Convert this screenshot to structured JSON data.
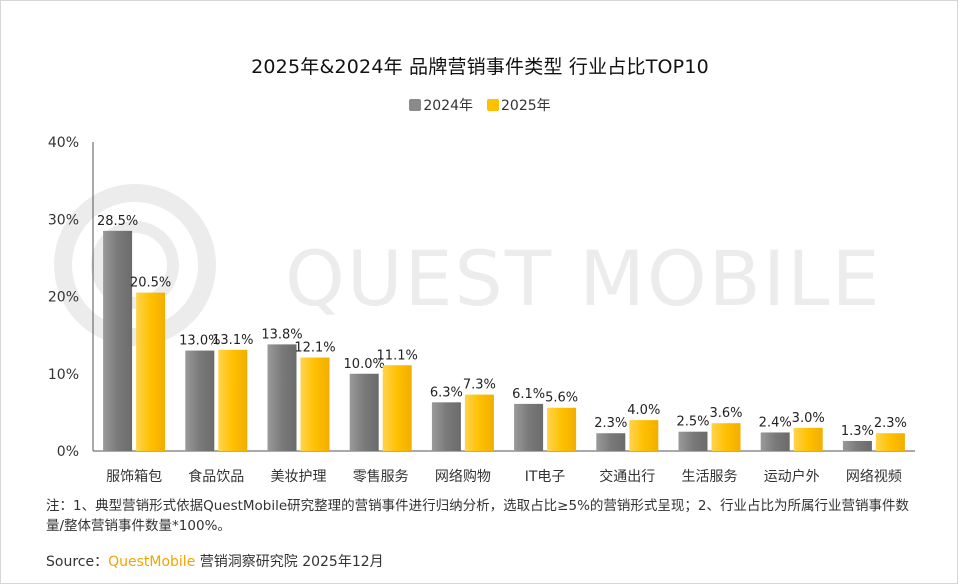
{
  "chart_data": {
    "type": "bar",
    "title": "2025年&2024年 品牌营销事件类型 行业占比TOP10",
    "categories": [
      "服饰箱包",
      "食品饮品",
      "美妆护理",
      "零售服务",
      "网络购物",
      "IT电子",
      "交通出行",
      "生活服务",
      "运动户外",
      "网络视频"
    ],
    "series": [
      {
        "name": "2024年",
        "color": "#8a8a8a",
        "values": [
          28.5,
          13.0,
          13.8,
          10.0,
          6.3,
          6.1,
          2.3,
          2.5,
          2.4,
          1.3
        ],
        "labels": [
          "28.5%",
          "13.0%",
          "13.8%",
          "10.0%",
          "6.3%",
          "6.1%",
          "2.3%",
          "2.5%",
          "2.4%",
          "1.3%"
        ]
      },
      {
        "name": "2025年",
        "color": "#ffc000",
        "values": [
          20.5,
          13.1,
          12.1,
          11.1,
          7.3,
          5.6,
          4.0,
          3.6,
          3.0,
          2.3
        ],
        "labels": [
          "20.5%",
          "13.1%",
          "12.1%",
          "11.1%",
          "7.3%",
          "5.6%",
          "4.0%",
          "3.6%",
          "3.0%",
          "2.3%"
        ]
      }
    ],
    "y_ticks": [
      "0%",
      "10%",
      "20%",
      "30%",
      "40%"
    ],
    "ylim": [
      0,
      40
    ],
    "xlabel": "",
    "ylabel": "",
    "legend_position": "top-center"
  },
  "watermark": "QUEST MOBILE",
  "note": "注：1、典型营销形式依据QuestMobile研究整理的营销事件进行归纳分析，选取占比≥5%的营销形式呈现；2、行业占比为所属行业营销事件数量/整体营销事件数量*100%。",
  "source": {
    "label": "Source：",
    "brand": "QuestMobile",
    "text": " 营销洞察研究院 2025年12月"
  }
}
